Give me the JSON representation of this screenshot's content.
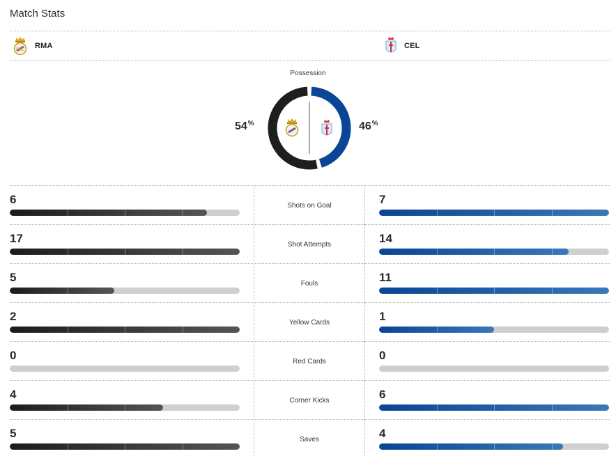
{
  "title": "Match Stats",
  "teams": {
    "home": {
      "abbr": "RMA",
      "crest": "real-madrid-crest-icon",
      "color": "#1f1f1f"
    },
    "away": {
      "abbr": "CEL",
      "crest": "celta-vigo-crest-icon",
      "color": "#0b4596"
    }
  },
  "possession": {
    "label": "Possession",
    "home": 54,
    "away": 46,
    "home_text": "54",
    "away_text": "46",
    "unit": "%"
  },
  "stats": [
    {
      "label": "Shots on Goal",
      "home": 6,
      "away": 7,
      "home_text": "6",
      "away_text": "7"
    },
    {
      "label": "Shot Attempts",
      "home": 17,
      "away": 14,
      "home_text": "17",
      "away_text": "14"
    },
    {
      "label": "Fouls",
      "home": 5,
      "away": 11,
      "home_text": "5",
      "away_text": "11"
    },
    {
      "label": "Yellow Cards",
      "home": 2,
      "away": 1,
      "home_text": "2",
      "away_text": "1"
    },
    {
      "label": "Red Cards",
      "home": 0,
      "away": 0,
      "home_text": "0",
      "away_text": "0"
    },
    {
      "label": "Corner Kicks",
      "home": 4,
      "away": 6,
      "home_text": "4",
      "away_text": "6"
    },
    {
      "label": "Saves",
      "home": 5,
      "away": 4,
      "home_text": "5",
      "away_text": "4"
    }
  ],
  "bar_fill": {
    "note_units": "fraction",
    "values": [
      {
        "home": 0.857,
        "away": 1.0
      },
      {
        "home": 1.0,
        "away": 0.824
      },
      {
        "home": 0.455,
        "away": 1.0
      },
      {
        "home": 1.0,
        "away": 0.5
      },
      {
        "home": 0.0,
        "away": 0.0
      },
      {
        "home": 0.667,
        "away": 1.0
      },
      {
        "home": 1.0,
        "away": 0.8
      }
    ]
  }
}
